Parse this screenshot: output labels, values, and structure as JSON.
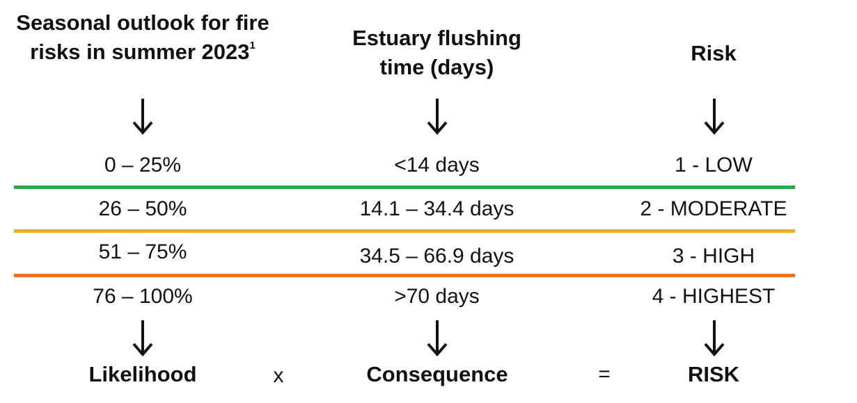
{
  "headers": {
    "likelihood": {
      "title": "Seasonal outlook for fire risks in summer 2023",
      "sup": "1"
    },
    "consequence": {
      "title": "Estuary flushing time (days)"
    },
    "risk": {
      "title": "Risk"
    }
  },
  "rows": [
    {
      "likelihood": "0 – 25%",
      "consequence": "<14 days",
      "risk": "1 - LOW"
    },
    {
      "likelihood": "26 – 50%",
      "consequence": "14.1 – 34.4 days",
      "risk": "2 - MODERATE"
    },
    {
      "likelihood": "51 – 75%",
      "consequence": "34.5 – 66.9 days",
      "risk": "3 - HIGH"
    },
    {
      "likelihood": "76 – 100%",
      "consequence": ">70 days",
      "risk": "4 - HIGHEST"
    }
  ],
  "separators": {
    "colors": [
      "#2aa84a",
      "#e8b020",
      "#e8702a"
    ]
  },
  "footer": {
    "likelihood": "Likelihood",
    "times": "x",
    "consequence": "Consequence",
    "equals": "=",
    "risk": "RISK"
  },
  "icons": {
    "arrow": "arrow-down-icon"
  }
}
